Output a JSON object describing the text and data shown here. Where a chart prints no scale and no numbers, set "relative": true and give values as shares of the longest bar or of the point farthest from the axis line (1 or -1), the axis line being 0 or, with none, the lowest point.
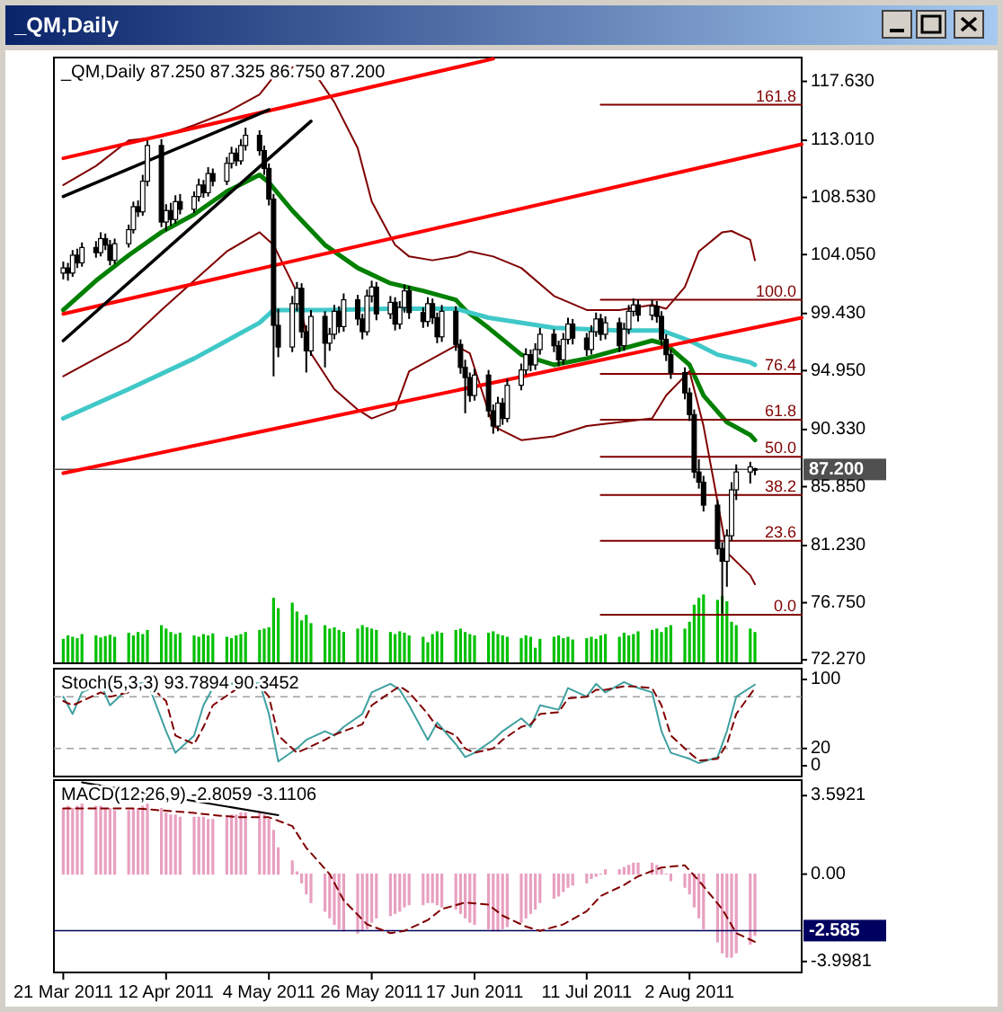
{
  "chart_data": [
    {
      "type": "candlestick",
      "title": "_QM,Daily 87.250 87.325 86.750 87.200",
      "tick_labels": "y",
      "color": "#000000",
      "annotations": [
        "_QM,Daily",
        {
          "text": "161.8",
          "x": "2011-08-26",
          "y": 115.8
        },
        {
          "text": "100.0",
          "x": "2011-08-26",
          "y": 100.5
        },
        {
          "text": "76.4",
          "x": "2011-08-26",
          "y": 94.7
        },
        {
          "text": "61.8",
          "x": "2011-08-26",
          "y": 91.1
        },
        {
          "text": "50.0",
          "x": "2011-08-26",
          "y": 88.2
        },
        {
          "text": "38.2",
          "x": "2011-08-26",
          "y": 85.2
        },
        {
          "text": "23.6",
          "x": "2011-08-26",
          "y": 81.6
        },
        {
          "text": "0.0",
          "x": "2011-08-26",
          "y": 75.8
        }
      ],
      "xlim": [
        "2011-03-19",
        "2011-08-26"
      ],
      "ylim": [
        72.0,
        119.5
      ],
      "yticks": [
        {
          "value": 117.63,
          "label": "117.630"
        },
        {
          "value": 113.01,
          "label": "113.010"
        },
        {
          "value": 108.53,
          "label": "108.530"
        },
        {
          "value": 104.05,
          "label": "104.050"
        },
        {
          "value": 99.43,
          "label": "99.430"
        },
        {
          "value": 94.95,
          "label": "94.950"
        },
        {
          "value": 90.33,
          "label": "90.330"
        },
        {
          "value": 85.85,
          "label": "85.850"
        },
        {
          "value": 81.23,
          "label": "81.230"
        },
        {
          "value": 76.75,
          "label": "76.750"
        },
        {
          "value": 72.27,
          "label": "72.270"
        }
      ],
      "x": [
        "2011-03-21",
        "2011-03-22",
        "2011-03-23",
        "2011-03-24",
        "2011-03-25",
        "2011-03-28",
        "2011-03-29",
        "2011-03-30",
        "2011-03-31",
        "2011-04-01",
        "2011-04-04",
        "2011-04-05",
        "2011-04-06",
        "2011-04-07",
        "2011-04-08",
        "2011-04-11",
        "2011-04-12",
        "2011-04-13",
        "2011-04-14",
        "2011-04-15",
        "2011-04-18",
        "2011-04-19",
        "2011-04-20",
        "2011-04-21",
        "2011-04-22",
        "2011-04-25",
        "2011-04-26",
        "2011-04-27",
        "2011-04-28",
        "2011-04-29",
        "2011-05-02",
        "2011-05-03",
        "2011-05-04",
        "2011-05-05",
        "2011-05-06",
        "2011-05-09",
        "2011-05-10",
        "2011-05-11",
        "2011-05-12",
        "2011-05-13",
        "2011-05-16",
        "2011-05-17",
        "2011-05-18",
        "2011-05-19",
        "2011-05-20",
        "2011-05-23",
        "2011-05-24",
        "2011-05-25",
        "2011-05-26",
        "2011-05-27",
        "2011-05-30",
        "2011-05-31",
        "2011-06-01",
        "2011-06-02",
        "2011-06-03",
        "2011-06-06",
        "2011-06-07",
        "2011-06-08",
        "2011-06-09",
        "2011-06-10",
        "2011-06-13",
        "2011-06-14",
        "2011-06-15",
        "2011-06-16",
        "2011-06-17",
        "2011-06-20",
        "2011-06-21",
        "2011-06-22",
        "2011-06-23",
        "2011-06-24",
        "2011-06-27",
        "2011-06-28",
        "2011-06-29",
        "2011-06-30",
        "2011-07-01",
        "2011-07-04",
        "2011-07-05",
        "2011-07-06",
        "2011-07-07",
        "2011-07-08",
        "2011-07-11",
        "2011-07-12",
        "2011-07-13",
        "2011-07-14",
        "2011-07-15",
        "2011-07-18",
        "2011-07-19",
        "2011-07-20",
        "2011-07-21",
        "2011-07-22",
        "2011-07-25",
        "2011-07-26",
        "2011-07-27",
        "2011-07-28",
        "2011-07-29",
        "2011-08-01",
        "2011-08-02",
        "2011-08-03",
        "2011-08-04",
        "2011-08-05",
        "2011-08-08",
        "2011-08-09",
        "2011-08-10",
        "2011-08-11",
        "2011-08-12",
        "2011-08-15",
        "2011-08-16"
      ],
      "ohlc": [
        [
          102.6,
          103.5,
          102.1,
          103.0
        ],
        [
          103.0,
          103.4,
          102.0,
          102.6
        ],
        [
          102.6,
          104.4,
          102.3,
          104.0
        ],
        [
          104.0,
          104.5,
          103.0,
          103.4
        ],
        [
          103.4,
          105.0,
          103.1,
          104.6
        ],
        [
          104.6,
          105.1,
          103.8,
          104.2
        ],
        [
          104.2,
          105.8,
          103.9,
          105.3
        ],
        [
          105.3,
          105.7,
          104.4,
          104.8
        ],
        [
          104.8,
          105.2,
          103.2,
          103.6
        ],
        [
          103.6,
          105.3,
          103.3,
          104.9
        ],
        [
          104.9,
          106.4,
          104.6,
          106.0
        ],
        [
          106.0,
          108.2,
          105.7,
          107.8
        ],
        [
          107.8,
          108.3,
          107.0,
          107.4
        ],
        [
          107.4,
          110.3,
          107.1,
          109.8
        ],
        [
          109.8,
          113.0,
          109.4,
          112.6
        ],
        [
          112.6,
          113.1,
          106.2,
          106.6
        ],
        [
          106.6,
          108.0,
          105.9,
          107.5
        ],
        [
          107.5,
          108.1,
          106.3,
          106.8
        ],
        [
          106.8,
          108.7,
          106.5,
          108.2
        ],
        [
          108.2,
          108.8,
          107.2,
          107.6
        ],
        [
          107.6,
          109.0,
          107.3,
          108.6
        ],
        [
          108.6,
          110.0,
          108.2,
          109.5
        ],
        [
          109.5,
          109.9,
          108.5,
          108.9
        ],
        [
          108.9,
          110.9,
          108.6,
          110.4
        ],
        [
          110.4,
          110.8,
          109.4,
          109.8
        ],
        [
          109.8,
          111.7,
          109.5,
          111.2
        ],
        [
          111.2,
          112.5,
          110.8,
          112.0
        ],
        [
          112.0,
          112.4,
          111.0,
          111.4
        ],
        [
          111.4,
          113.1,
          111.1,
          112.6
        ],
        [
          112.6,
          114.0,
          112.2,
          113.4
        ],
        [
          113.4,
          113.8,
          111.8,
          112.2
        ],
        [
          112.2,
          112.6,
          110.3,
          110.8
        ],
        [
          110.8,
          111.2,
          107.9,
          108.4
        ],
        [
          108.4,
          108.8,
          94.5,
          98.5
        ],
        [
          98.5,
          99.8,
          96.0,
          96.8
        ],
        [
          96.8,
          100.8,
          96.4,
          100.2
        ],
        [
          100.2,
          101.9,
          99.6,
          101.4
        ],
        [
          101.4,
          101.8,
          97.5,
          98.0
        ],
        [
          98.0,
          98.5,
          94.8,
          96.5
        ],
        [
          96.5,
          99.7,
          96.1,
          99.2
        ],
        [
          99.2,
          99.6,
          95.2,
          97.1
        ],
        [
          97.1,
          98.3,
          96.5,
          97.8
        ],
        [
          97.8,
          100.1,
          97.4,
          99.6
        ],
        [
          99.6,
          100.0,
          97.9,
          98.4
        ],
        [
          98.4,
          101.0,
          98.0,
          100.5
        ],
        [
          100.5,
          100.9,
          98.5,
          99.0
        ],
        [
          99.0,
          99.4,
          97.4,
          98.0
        ],
        [
          98.0,
          101.3,
          97.7,
          100.8
        ],
        [
          100.8,
          102.0,
          100.3,
          101.5
        ],
        [
          101.5,
          101.9,
          98.9,
          99.4
        ],
        [
          99.4,
          100.8,
          99.0,
          100.3
        ],
        [
          100.3,
          100.7,
          98.1,
          98.6
        ],
        [
          98.6,
          100.4,
          98.2,
          99.9
        ],
        [
          99.9,
          101.7,
          99.5,
          101.2
        ],
        [
          101.2,
          101.6,
          99.0,
          99.5
        ],
        [
          99.5,
          99.9,
          98.3,
          98.8
        ],
        [
          98.8,
          100.7,
          98.4,
          100.2
        ],
        [
          100.2,
          100.6,
          98.6,
          99.1
        ],
        [
          99.1,
          99.5,
          97.1,
          97.6
        ],
        [
          97.6,
          100.1,
          97.2,
          99.6
        ],
        [
          99.6,
          100.0,
          96.5,
          97.0
        ],
        [
          97.0,
          97.4,
          94.7,
          95.2
        ],
        [
          95.2,
          95.8,
          91.6,
          94.4
        ],
        [
          94.4,
          94.8,
          92.5,
          93.0
        ],
        [
          93.0,
          95.1,
          92.6,
          94.6
        ],
        [
          94.6,
          95.0,
          91.3,
          91.8
        ],
        [
          91.8,
          92.3,
          90.0,
          90.6
        ],
        [
          90.6,
          92.9,
          90.2,
          92.4
        ],
        [
          92.4,
          92.8,
          90.7,
          91.2
        ],
        [
          91.2,
          94.3,
          90.9,
          93.8
        ],
        [
          93.8,
          95.5,
          93.4,
          95.0
        ],
        [
          95.0,
          96.7,
          94.6,
          96.2
        ],
        [
          96.2,
          96.6,
          94.9,
          95.4
        ],
        [
          95.4,
          97.1,
          95.0,
          96.6
        ],
        [
          96.6,
          98.3,
          96.2,
          97.8
        ],
        [
          97.8,
          98.2,
          96.4,
          96.9
        ],
        [
          96.9,
          97.3,
          95.3,
          95.8
        ],
        [
          95.8,
          97.9,
          95.4,
          97.4
        ],
        [
          97.4,
          99.1,
          97.0,
          98.6
        ],
        [
          98.6,
          99.0,
          97.0,
          97.5
        ],
        [
          97.5,
          97.9,
          96.1,
          96.6
        ],
        [
          96.6,
          98.5,
          96.2,
          98.0
        ],
        [
          98.0,
          99.5,
          97.6,
          99.0
        ],
        [
          99.0,
          99.4,
          97.3,
          97.8
        ],
        [
          97.8,
          99.2,
          97.4,
          98.7
        ],
        [
          98.7,
          99.1,
          96.4,
          96.9
        ],
        [
          96.9,
          98.7,
          96.5,
          98.2
        ],
        [
          98.2,
          100.1,
          97.8,
          99.6
        ],
        [
          99.6,
          100.6,
          99.2,
          100.1
        ],
        [
          100.1,
          100.5,
          98.8,
          99.3
        ],
        [
          99.3,
          100.5,
          98.9,
          100.0
        ],
        [
          100.0,
          100.4,
          98.7,
          99.2
        ],
        [
          99.2,
          99.6,
          96.9,
          97.4
        ],
        [
          97.4,
          97.8,
          95.7,
          96.2
        ],
        [
          96.2,
          96.6,
          94.3,
          94.8
        ],
        [
          94.8,
          95.2,
          92.7,
          93.2
        ],
        [
          93.2,
          93.6,
          91.0,
          91.5
        ],
        [
          91.5,
          91.9,
          86.5,
          87.0
        ],
        [
          87.0,
          88.0,
          85.7,
          86.2
        ],
        [
          86.2,
          86.7,
          83.9,
          84.4
        ],
        [
          84.4,
          84.8,
          80.5,
          81.0
        ],
        [
          81.0,
          81.5,
          75.9,
          80.0
        ],
        [
          80.0,
          82.5,
          78.0,
          82.0
        ],
        [
          82.0,
          86.2,
          81.6,
          85.6
        ],
        [
          85.6,
          87.6,
          84.8,
          87.0
        ],
        [
          87.0,
          87.8,
          86.1,
          87.4
        ],
        [
          87.25,
          87.325,
          86.75,
          87.2
        ]
      ],
      "series": [
        {
          "type": "line",
          "color": "#008000",
          "x": [
            "2011-03-21",
            "2011-03-28",
            "2011-04-04",
            "2011-04-11",
            "2011-04-18",
            "2011-04-25",
            "2011-05-02",
            "2011-05-04",
            "2011-05-09",
            "2011-05-16",
            "2011-05-23",
            "2011-05-30",
            "2011-06-06",
            "2011-06-13",
            "2011-06-15",
            "2011-06-20",
            "2011-06-27",
            "2011-07-04",
            "2011-07-11",
            "2011-07-18",
            "2011-07-25",
            "2011-07-28",
            "2011-08-02",
            "2011-08-05",
            "2011-08-10",
            "2011-08-15",
            "2011-08-16"
          ],
          "values": [
            99.7,
            102.0,
            104.0,
            105.8,
            107.2,
            109.0,
            110.3,
            109.7,
            107.5,
            104.8,
            103.0,
            101.8,
            101.2,
            100.5,
            99.7,
            98.3,
            96.2,
            95.4,
            95.9,
            96.6,
            97.3,
            97.0,
            95.4,
            93.0,
            90.9,
            89.9,
            89.5
          ]
        },
        {
          "type": "line",
          "color": "#40c8c8",
          "x": [
            "2011-03-21",
            "2011-04-04",
            "2011-04-18",
            "2011-05-02",
            "2011-05-05",
            "2011-05-16",
            "2011-05-30",
            "2011-06-13",
            "2011-06-20",
            "2011-07-04",
            "2011-07-18",
            "2011-07-27",
            "2011-08-02",
            "2011-08-08",
            "2011-08-15",
            "2011-08-16"
          ],
          "values": [
            91.2,
            93.5,
            95.9,
            98.7,
            99.7,
            99.7,
            99.8,
            99.8,
            99.1,
            98.3,
            98.1,
            98.1,
            97.3,
            96.2,
            95.6,
            95.4
          ]
        },
        {
          "type": "line",
          "color": "#800000",
          "x": [
            "2011-03-21",
            "2011-03-28",
            "2011-04-04",
            "2011-04-11",
            "2011-04-18",
            "2011-04-25",
            "2011-05-02",
            "2011-05-05",
            "2011-05-10",
            "2011-05-13",
            "2011-05-18",
            "2011-05-23",
            "2011-05-26",
            "2011-05-31",
            "2011-06-03",
            "2011-06-08",
            "2011-06-13",
            "2011-06-16",
            "2011-06-21",
            "2011-06-27",
            "2011-07-04",
            "2011-07-11",
            "2011-07-18",
            "2011-07-25",
            "2011-07-28",
            "2011-08-01",
            "2011-08-04",
            "2011-08-09",
            "2011-08-11",
            "2011-08-15",
            "2011-08-16"
          ],
          "values": [
            109.5,
            111.0,
            113.0,
            113.3,
            114.2,
            115.2,
            116.6,
            118.0,
            118.9,
            118.7,
            116.0,
            112.4,
            108.2,
            104.8,
            103.9,
            103.6,
            103.9,
            104.3,
            103.9,
            103.0,
            100.8,
            99.7,
            99.7,
            100.1,
            99.8,
            101.5,
            104.3,
            105.8,
            105.9,
            105.2,
            103.6
          ]
        },
        {
          "type": "line",
          "color": "#800000",
          "x": [
            "2011-03-21",
            "2011-04-04",
            "2011-04-11",
            "2011-04-18",
            "2011-04-25",
            "2011-05-02",
            "2011-05-05",
            "2011-05-10",
            "2011-05-13",
            "2011-05-18",
            "2011-05-23",
            "2011-05-26",
            "2011-05-31",
            "2011-06-03",
            "2011-06-08",
            "2011-06-13",
            "2011-06-16",
            "2011-06-21",
            "2011-06-27",
            "2011-07-04",
            "2011-07-11",
            "2011-07-18",
            "2011-07-25",
            "2011-07-28",
            "2011-08-02",
            "2011-08-05",
            "2011-08-10",
            "2011-08-15",
            "2011-08-16"
          ],
          "values": [
            94.5,
            97.3,
            99.7,
            102.0,
            104.3,
            105.8,
            104.8,
            101.1,
            96.3,
            93.5,
            91.9,
            91.2,
            91.9,
            94.9,
            95.9,
            96.9,
            96.3,
            90.6,
            89.5,
            89.8,
            90.6,
            90.9,
            91.2,
            93.0,
            94.9,
            90.6,
            80.7,
            78.9,
            78.2
          ]
        },
        {
          "type": "line",
          "color": "#ff0000",
          "x": [
            "2011-03-21",
            "2011-06-21"
          ],
          "values": [
            111.6,
            119.4
          ]
        },
        {
          "type": "line",
          "color": "#ff0000",
          "x": [
            "2011-03-21",
            "2011-08-26"
          ],
          "values": [
            99.4,
            112.7
          ]
        },
        {
          "type": "line",
          "color": "#ff0000",
          "x": [
            "2011-03-21",
            "2011-08-26"
          ],
          "values": [
            86.9,
            99.1
          ]
        },
        {
          "type": "line",
          "color": "#000000",
          "x": [
            "2011-03-21",
            "2011-05-04"
          ],
          "values": [
            108.6,
            115.4
          ]
        },
        {
          "type": "line",
          "color": "#000000",
          "x": [
            "2011-03-21",
            "2011-05-13"
          ],
          "values": [
            97.3,
            114.5
          ]
        },
        {
          "type": "line",
          "color": "#800000",
          "x": [
            "2011-07-14",
            "2011-08-26"
          ],
          "values": [
            115.8,
            115.8
          ]
        },
        {
          "type": "line",
          "color": "#800000",
          "x": [
            "2011-07-14",
            "2011-08-26"
          ],
          "values": [
            100.5,
            100.5
          ]
        },
        {
          "type": "line",
          "color": "#800000",
          "x": [
            "2011-07-14",
            "2011-08-26"
          ],
          "values": [
            94.7,
            94.7
          ]
        },
        {
          "type": "line",
          "color": "#800000",
          "x": [
            "2011-07-14",
            "2011-08-26"
          ],
          "values": [
            91.1,
            91.1
          ]
        },
        {
          "type": "line",
          "color": "#800000",
          "x": [
            "2011-07-14",
            "2011-08-26"
          ],
          "values": [
            88.2,
            88.2
          ]
        },
        {
          "type": "line",
          "color": "#800000",
          "x": [
            "2011-07-14",
            "2011-08-26"
          ],
          "values": [
            85.2,
            85.2
          ]
        },
        {
          "type": "line",
          "color": "#800000",
          "x": [
            "2011-07-14",
            "2011-08-26"
          ],
          "values": [
            81.6,
            81.6
          ]
        },
        {
          "type": "line",
          "color": "#800000",
          "x": [
            "2011-07-14",
            "2011-08-26"
          ],
          "values": [
            75.8,
            75.8
          ]
        }
      ],
      "ref_lines": [
        {
          "axis": "y",
          "value": 87.2,
          "label": "87.200",
          "color": "#505050"
        }
      ]
    },
    {
      "type": "bar",
      "relative": true,
      "tick_labels": false,
      "color": "#00c000",
      "xlim": [
        "2011-03-19",
        "2011-08-26"
      ],
      "x": [
        "2011-03-21",
        "2011-03-22",
        "2011-03-23",
        "2011-03-24",
        "2011-03-25",
        "2011-03-28",
        "2011-03-29",
        "2011-03-30",
        "2011-03-31",
        "2011-04-01",
        "2011-04-04",
        "2011-04-05",
        "2011-04-06",
        "2011-04-07",
        "2011-04-08",
        "2011-04-11",
        "2011-04-12",
        "2011-04-13",
        "2011-04-14",
        "2011-04-15",
        "2011-04-18",
        "2011-04-19",
        "2011-04-20",
        "2011-04-21",
        "2011-04-22",
        "2011-04-25",
        "2011-04-26",
        "2011-04-27",
        "2011-04-28",
        "2011-04-29",
        "2011-05-02",
        "2011-05-03",
        "2011-05-04",
        "2011-05-05",
        "2011-05-06",
        "2011-05-09",
        "2011-05-10",
        "2011-05-11",
        "2011-05-12",
        "2011-05-13",
        "2011-05-16",
        "2011-05-17",
        "2011-05-18",
        "2011-05-19",
        "2011-05-20",
        "2011-05-23",
        "2011-05-24",
        "2011-05-25",
        "2011-05-26",
        "2011-05-27",
        "2011-05-30",
        "2011-05-31",
        "2011-06-01",
        "2011-06-02",
        "2011-06-03",
        "2011-06-06",
        "2011-06-07",
        "2011-06-08",
        "2011-06-09",
        "2011-06-10",
        "2011-06-13",
        "2011-06-14",
        "2011-06-15",
        "2011-06-16",
        "2011-06-17",
        "2011-06-20",
        "2011-06-21",
        "2011-06-22",
        "2011-06-23",
        "2011-06-24",
        "2011-06-27",
        "2011-06-28",
        "2011-06-29",
        "2011-06-30",
        "2011-07-01",
        "2011-07-04",
        "2011-07-05",
        "2011-07-06",
        "2011-07-07",
        "2011-07-08",
        "2011-07-11",
        "2011-07-12",
        "2011-07-13",
        "2011-07-14",
        "2011-07-15",
        "2011-07-18",
        "2011-07-19",
        "2011-07-20",
        "2011-07-21",
        "2011-07-22",
        "2011-07-25",
        "2011-07-26",
        "2011-07-27",
        "2011-07-28",
        "2011-07-29",
        "2011-08-01",
        "2011-08-02",
        "2011-08-03",
        "2011-08-04",
        "2011-08-05",
        "2011-08-08",
        "2011-08-09",
        "2011-08-10",
        "2011-08-11",
        "2011-08-12",
        "2011-08-15",
        "2011-08-16"
      ],
      "values": [
        0.35,
        0.4,
        0.38,
        0.36,
        0.42,
        0.4,
        0.37,
        0.39,
        0.41,
        0.38,
        0.44,
        0.4,
        0.45,
        0.42,
        0.48,
        0.55,
        0.5,
        0.45,
        0.42,
        0.44,
        0.4,
        0.38,
        0.42,
        0.4,
        0.43,
        0.38,
        0.36,
        0.4,
        0.42,
        0.45,
        0.48,
        0.5,
        0.52,
        0.95,
        0.8,
        0.88,
        0.75,
        0.62,
        0.7,
        0.58,
        0.55,
        0.5,
        0.52,
        0.48,
        0.45,
        0.5,
        0.55,
        0.52,
        0.5,
        0.48,
        0.45,
        0.42,
        0.46,
        0.44,
        0.4,
        0.38,
        0.3,
        0.42,
        0.46,
        0.44,
        0.48,
        0.5,
        0.45,
        0.42,
        0.4,
        0.44,
        0.46,
        0.42,
        0.4,
        0.38,
        0.36,
        0.4,
        0.38,
        0.22,
        0.35,
        0.38,
        0.4,
        0.36,
        0.38,
        0.34,
        0.36,
        0.38,
        0.35,
        0.4,
        0.42,
        0.38,
        0.44,
        0.4,
        0.42,
        0.46,
        0.48,
        0.5,
        0.45,
        0.52,
        0.55,
        0.5,
        0.6,
        0.85,
        0.95,
        1.0,
        0.92,
        0.98,
        0.9,
        0.6,
        0.55,
        0.5,
        0.45
      ]
    },
    {
      "type": "line",
      "title": "Stoch(5,3,3) 93.7894 90.3452",
      "tick_labels": "y",
      "xlim": [
        "2011-03-19",
        "2011-08-26"
      ],
      "ylim": [
        -12.5,
        112.5
      ],
      "yticks": [
        100,
        20,
        0
      ],
      "x": [
        "2011-03-21",
        "2011-03-23",
        "2011-03-25",
        "2011-03-29",
        "2011-03-31",
        "2011-04-04",
        "2011-04-06",
        "2011-04-08",
        "2011-04-12",
        "2011-04-14",
        "2011-04-18",
        "2011-04-20",
        "2011-04-22",
        "2011-04-26",
        "2011-04-28",
        "2011-05-02",
        "2011-05-04",
        "2011-05-06",
        "2011-05-10",
        "2011-05-12",
        "2011-05-16",
        "2011-05-18",
        "2011-05-20",
        "2011-05-24",
        "2011-05-26",
        "2011-05-30",
        "2011-06-01",
        "2011-06-03",
        "2011-06-07",
        "2011-06-09",
        "2011-06-13",
        "2011-06-15",
        "2011-06-17",
        "2011-06-21",
        "2011-06-23",
        "2011-06-27",
        "2011-06-29",
        "2011-07-01",
        "2011-07-05",
        "2011-07-07",
        "2011-07-11",
        "2011-07-13",
        "2011-07-15",
        "2011-07-19",
        "2011-07-21",
        "2011-07-25",
        "2011-07-27",
        "2011-07-29",
        "2011-08-02",
        "2011-08-04",
        "2011-08-08",
        "2011-08-10",
        "2011-08-12",
        "2011-08-16"
      ],
      "series": [
        {
          "color": "#40a0a0",
          "values": [
            80,
            60,
            85,
            95,
            70,
            90,
            95,
            97,
            40,
            15,
            35,
            70,
            90,
            95,
            92,
            96,
            60,
            5,
            20,
            30,
            40,
            35,
            45,
            60,
            85,
            95,
            88,
            70,
            30,
            50,
            25,
            10,
            15,
            30,
            40,
            55,
            45,
            70,
            65,
            90,
            80,
            95,
            85,
            97,
            92,
            85,
            40,
            15,
            8,
            3,
            10,
            40,
            80,
            94
          ]
        },
        {
          "color": "#800000",
          "line_style": "dashed",
          "values": [
            75,
            70,
            75,
            85,
            80,
            85,
            90,
            95,
            75,
            35,
            25,
            45,
            70,
            85,
            92,
            93,
            80,
            35,
            15,
            20,
            30,
            36,
            40,
            48,
            70,
            85,
            92,
            85,
            60,
            45,
            35,
            20,
            15,
            20,
            30,
            45,
            48,
            60,
            62,
            78,
            80,
            88,
            88,
            92,
            92,
            90,
            70,
            35,
            15,
            6,
            8,
            25,
            60,
            90
          ]
        }
      ],
      "ref_lines": [
        {
          "axis": "y",
          "value": 80,
          "color": "#a0a0a0",
          "line_style": "dashed"
        },
        {
          "axis": "y",
          "value": 20,
          "color": "#a0a0a0",
          "line_style": "dashed"
        }
      ]
    },
    {
      "type": "bar",
      "title": "MACD(12,26,9) -2.8059 -3.1106",
      "xlim": [
        "2011-03-19",
        "2011-08-26"
      ],
      "ylim": [
        -4.5,
        4.3
      ],
      "yticks": [
        3.5921,
        {
          "value": 0,
          "label": "0.00"
        },
        -3.9981
      ],
      "xticks": [
        {
          "value": "2011-03-21",
          "label": "21 Mar 2011"
        },
        {
          "value": "2011-04-12",
          "label": "12 Apr 2011"
        },
        {
          "value": "2011-05-04",
          "label": "4 May 2011"
        },
        {
          "value": "2011-05-26",
          "label": "26 May 2011"
        },
        {
          "value": "2011-06-17",
          "label": "17 Jun 2011"
        },
        {
          "value": "2011-07-11",
          "label": "11 Jul 2011"
        },
        {
          "value": "2011-08-02",
          "label": "2 Aug 2011"
        }
      ],
      "x": [
        "2011-03-21",
        "2011-03-22",
        "2011-03-23",
        "2011-03-24",
        "2011-03-25",
        "2011-03-28",
        "2011-03-29",
        "2011-03-30",
        "2011-03-31",
        "2011-04-01",
        "2011-04-04",
        "2011-04-05",
        "2011-04-06",
        "2011-04-07",
        "2011-04-08",
        "2011-04-11",
        "2011-04-12",
        "2011-04-13",
        "2011-04-14",
        "2011-04-15",
        "2011-04-18",
        "2011-04-19",
        "2011-04-20",
        "2011-04-21",
        "2011-04-22",
        "2011-04-25",
        "2011-04-26",
        "2011-04-27",
        "2011-04-28",
        "2011-04-29",
        "2011-05-02",
        "2011-05-03",
        "2011-05-04",
        "2011-05-05",
        "2011-05-06",
        "2011-05-09",
        "2011-05-10",
        "2011-05-11",
        "2011-05-12",
        "2011-05-13",
        "2011-05-16",
        "2011-05-17",
        "2011-05-18",
        "2011-05-19",
        "2011-05-20",
        "2011-05-23",
        "2011-05-24",
        "2011-05-25",
        "2011-05-26",
        "2011-05-27",
        "2011-05-30",
        "2011-05-31",
        "2011-06-01",
        "2011-06-02",
        "2011-06-03",
        "2011-06-06",
        "2011-06-07",
        "2011-06-08",
        "2011-06-09",
        "2011-06-10",
        "2011-06-13",
        "2011-06-14",
        "2011-06-15",
        "2011-06-16",
        "2011-06-17",
        "2011-06-20",
        "2011-06-21",
        "2011-06-22",
        "2011-06-23",
        "2011-06-24",
        "2011-06-27",
        "2011-06-28",
        "2011-06-29",
        "2011-06-30",
        "2011-07-01",
        "2011-07-04",
        "2011-07-05",
        "2011-07-06",
        "2011-07-07",
        "2011-07-08",
        "2011-07-11",
        "2011-07-12",
        "2011-07-13",
        "2011-07-14",
        "2011-07-15",
        "2011-07-18",
        "2011-07-19",
        "2011-07-20",
        "2011-07-21",
        "2011-07-22",
        "2011-07-25",
        "2011-07-26",
        "2011-07-27",
        "2011-07-28",
        "2011-07-29",
        "2011-08-01",
        "2011-08-02",
        "2011-08-03",
        "2011-08-04",
        "2011-08-05",
        "2011-08-08",
        "2011-08-09",
        "2011-08-10",
        "2011-08-11",
        "2011-08-12",
        "2011-08-15",
        "2011-08-16"
      ],
      "series": [
        {
          "type": "bar",
          "color": "#e8a0c0",
          "values": [
            3.0,
            3.1,
            3.0,
            3.1,
            3.2,
            3.1,
            3.1,
            3.0,
            3.0,
            2.9,
            2.9,
            3.0,
            3.0,
            3.1,
            3.2,
            3.0,
            2.8,
            2.7,
            2.7,
            2.6,
            2.6,
            2.6,
            2.6,
            2.5,
            2.5,
            2.6,
            2.7,
            2.7,
            2.8,
            2.8,
            2.8,
            2.7,
            2.5,
            2.0,
            1.2,
            0.6,
            0.1,
            -0.4,
            -0.9,
            -1.3,
            -1.7,
            -2.0,
            -2.3,
            -2.5,
            -2.6,
            -2.7,
            -2.6,
            -2.5,
            -2.2,
            -2.0,
            -1.9,
            -1.8,
            -1.7,
            -1.5,
            -1.4,
            -1.4,
            -1.3,
            -1.3,
            -1.4,
            -1.5,
            -1.6,
            -1.8,
            -2.0,
            -2.2,
            -2.3,
            -2.5,
            -2.6,
            -2.6,
            -2.5,
            -2.4,
            -2.2,
            -2.0,
            -1.8,
            -1.6,
            -1.3,
            -1.1,
            -1.0,
            -0.8,
            -0.6,
            -0.5,
            -0.4,
            -0.2,
            -0.1,
            0.0,
            0.2,
            0.2,
            0.3,
            0.4,
            0.5,
            0.5,
            0.5,
            0.4,
            0.2,
            0.0,
            -0.3,
            -0.6,
            -0.9,
            -1.5,
            -2.0,
            -2.5,
            -3.1,
            -3.6,
            -3.8,
            -3.8,
            -3.6,
            -3.2,
            -2.8
          ]
        },
        {
          "type": "line",
          "color": "#800000",
          "line_style": "dashed",
          "x": [
            "2011-03-21",
            "2011-03-25",
            "2011-03-31",
            "2011-04-06",
            "2011-04-12",
            "2011-04-18",
            "2011-04-22",
            "2011-04-28",
            "2011-05-04",
            "2011-05-09",
            "2011-05-12",
            "2011-05-17",
            "2011-05-20",
            "2011-05-25",
            "2011-05-30",
            "2011-06-02",
            "2011-06-07",
            "2011-06-10",
            "2011-06-15",
            "2011-06-20",
            "2011-06-23",
            "2011-06-28",
            "2011-07-01",
            "2011-07-06",
            "2011-07-11",
            "2011-07-14",
            "2011-07-19",
            "2011-07-22",
            "2011-07-27",
            "2011-08-01",
            "2011-08-04",
            "2011-08-09",
            "2011-08-12",
            "2011-08-16"
          ],
          "values": [
            3.0,
            3.0,
            3.0,
            3.0,
            2.9,
            2.8,
            2.7,
            2.6,
            2.6,
            2.2,
            1.2,
            0.0,
            -1.2,
            -2.3,
            -2.7,
            -2.6,
            -2.1,
            -1.6,
            -1.3,
            -1.4,
            -1.9,
            -2.4,
            -2.6,
            -2.3,
            -1.7,
            -1.0,
            -0.5,
            -0.1,
            0.3,
            0.4,
            -0.3,
            -1.6,
            -2.7,
            -3.1
          ]
        },
        {
          "type": "line",
          "color": "#000000",
          "x": [
            "2011-03-25",
            "2011-05-06"
          ],
          "values": [
            4.2,
            2.7
          ]
        }
      ],
      "ref_lines": [
        {
          "axis": "y",
          "value": -2.585,
          "label": "-2.585",
          "color": "#000060"
        }
      ]
    }
  ]
}
